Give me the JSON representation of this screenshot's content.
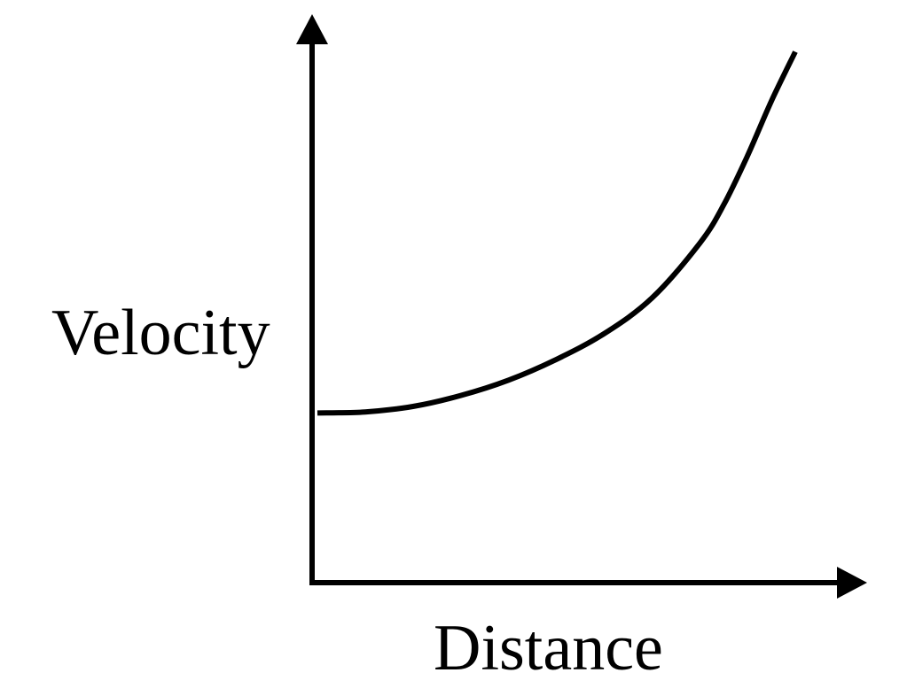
{
  "chart_data": {
    "type": "line",
    "title": "",
    "xlabel": "Distance",
    "ylabel": "Velocity",
    "grid": false,
    "ticks_shown": false,
    "xlim": [
      0,
      1
    ],
    "ylim": [
      0,
      1
    ],
    "series": [
      {
        "values_note_free": true,
        "x": [
          0.0,
          0.1,
          0.2,
          0.3,
          0.4,
          0.5,
          0.6,
          0.7,
          0.8,
          0.85,
          0.9,
          0.95,
          1.0
        ],
        "y": [
          0.31,
          0.312,
          0.322,
          0.342,
          0.37,
          0.408,
          0.455,
          0.52,
          0.62,
          0.69,
          0.78,
          0.88,
          0.97
        ]
      }
    ]
  },
  "colors": {
    "axis": "#000000",
    "curve": "#000000",
    "background": "#ffffff"
  }
}
